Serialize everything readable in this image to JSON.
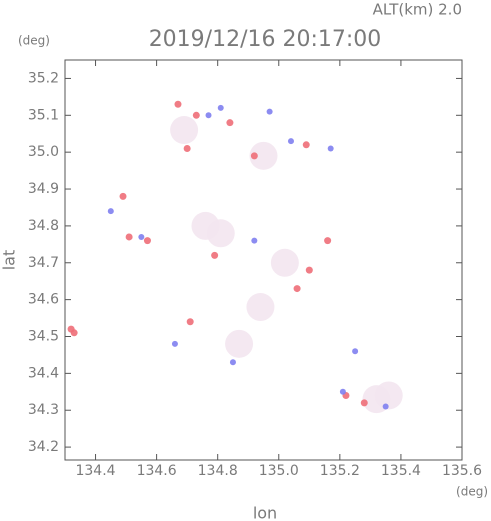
{
  "chart_data": {
    "type": "scatter",
    "title": "2019/12/16 20:17:00",
    "subtitle": "ALT(km)  2.0",
    "x_label": "lon",
    "y_label": "lat",
    "x_unit": "(deg)",
    "y_unit": "(deg)",
    "xlim": [
      134.3,
      135.6
    ],
    "ylim": [
      34.165,
      35.25
    ],
    "xticks": [
      134.4,
      134.6,
      134.8,
      {
        "value": 135,
        "label": "135.0"
      },
      135.2,
      135.4,
      135.6
    ],
    "yticks": [
      34.2,
      34.3,
      34.4,
      34.5,
      34.6,
      34.7,
      34.8,
      34.9,
      {
        "value": 35,
        "label": "35.0"
      },
      35.1,
      35.2
    ],
    "series": [
      {
        "color": "#f3e6ef",
        "marker_size": 14,
        "x": [
          134.81,
          134.94,
          134.87,
          135.32,
          134.95,
          134.69,
          135.02,
          134.76,
          135.36
        ],
        "y": [
          34.78,
          34.58,
          34.48,
          34.33,
          34.99,
          35.06,
          34.7,
          34.8,
          34.34
        ]
      },
      {
        "color": "#ee6e78",
        "marker_size": 3.5,
        "x": [
          134.32,
          134.33,
          134.49,
          134.51,
          134.67,
          134.73,
          134.84,
          134.7,
          134.92,
          135.09,
          134.79,
          135.1,
          135.06,
          135.16,
          135.28,
          135.22,
          134.57,
          134.71
        ],
        "y": [
          34.52,
          34.51,
          34.88,
          34.77,
          35.13,
          35.1,
          35.08,
          35.01,
          34.99,
          35.02,
          34.72,
          34.68,
          34.63,
          34.76,
          34.32,
          34.34,
          34.76,
          34.54
        ]
      },
      {
        "color": "#7f7ff0",
        "marker_size": 3,
        "x": [
          134.45,
          134.77,
          134.81,
          134.97,
          135.04,
          135.17,
          135.21,
          135.35,
          134.92,
          134.55,
          134.66,
          135.25,
          134.85
        ],
        "y": [
          34.84,
          35.1,
          35.12,
          35.11,
          35.03,
          35.01,
          34.35,
          34.31,
          34.76,
          34.77,
          34.48,
          34.46,
          34.43
        ]
      }
    ]
  }
}
